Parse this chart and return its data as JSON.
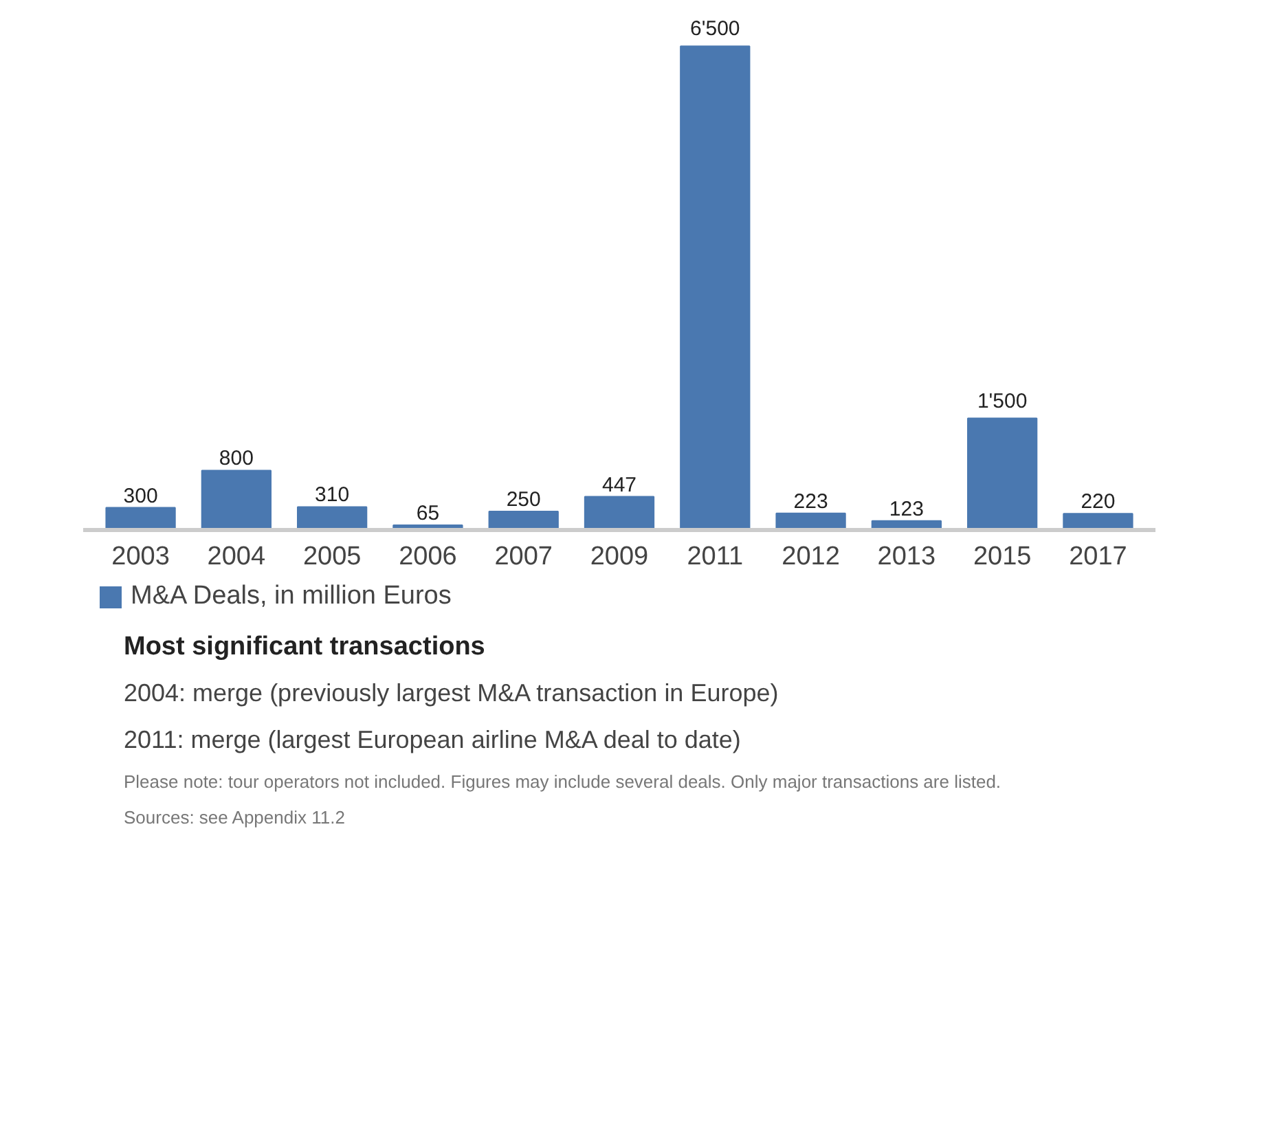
{
  "chart_data": {
    "type": "bar",
    "categories": [
      "2003",
      "2004",
      "2005",
      "2006",
      "2007",
      "2009",
      "2011",
      "2012",
      "2013",
      "2015",
      "2017"
    ],
    "series": [
      {
        "name": "M&A Deals, in million Euros",
        "color": "#4a78b0",
        "values": [
          300,
          800,
          310,
          65,
          250,
          447,
          6500,
          223,
          123,
          1500,
          220
        ],
        "value_labels": [
          "300",
          "800",
          "310",
          "65",
          "250",
          "447",
          "6'500",
          "223",
          "123",
          "1'500",
          "220"
        ]
      }
    ],
    "legend": "bottom",
    "grid": false,
    "annotations": [
      "Most significant transactions",
      "2004: merge (previously largest M&A transaction in Europe)",
      "2011: merge (largest European airline M&A deal to date)",
      "Please note: tour operators not included. Figures may include several deals. Only major transactions are listed.",
      "Sources: see Appendix 11.2"
    ]
  }
}
